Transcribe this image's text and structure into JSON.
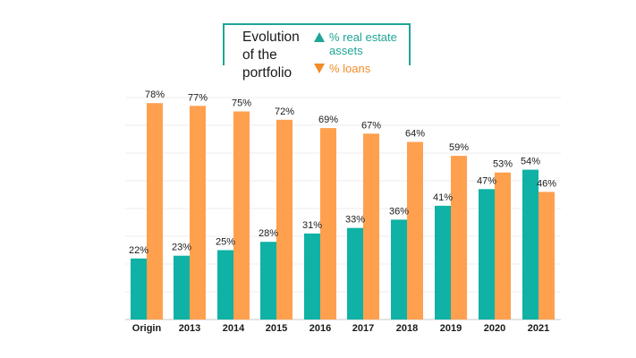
{
  "chart_data": {
    "type": "bar",
    "title": "Evolution of the portfolio",
    "categories": [
      "Origin",
      "2013",
      "2014",
      "2015",
      "2016",
      "2017",
      "2018",
      "2019",
      "2020",
      "2021"
    ],
    "series": [
      {
        "name": "% real estate assets",
        "color": "#0fb2a5",
        "values": [
          22,
          23,
          25,
          28,
          31,
          33,
          36,
          41,
          47,
          54
        ],
        "labels": [
          "22%",
          "23%",
          "25%",
          "28%",
          "31%",
          "33%",
          "36%",
          "41%",
          "47%",
          "54%"
        ]
      },
      {
        "name": "% loans",
        "color": "#ffa04f",
        "values": [
          78,
          77,
          75,
          72,
          69,
          67,
          64,
          59,
          53,
          46
        ],
        "labels": [
          "78%",
          "77%",
          "75%",
          "72%",
          "69%",
          "67%",
          "64%",
          "59%",
          "53%",
          "46%"
        ]
      }
    ],
    "ylim": [
      0,
      80
    ],
    "grid": true,
    "legend_position": "top-center",
    "legend_markers": [
      "triangle-up",
      "triangle-down"
    ]
  }
}
